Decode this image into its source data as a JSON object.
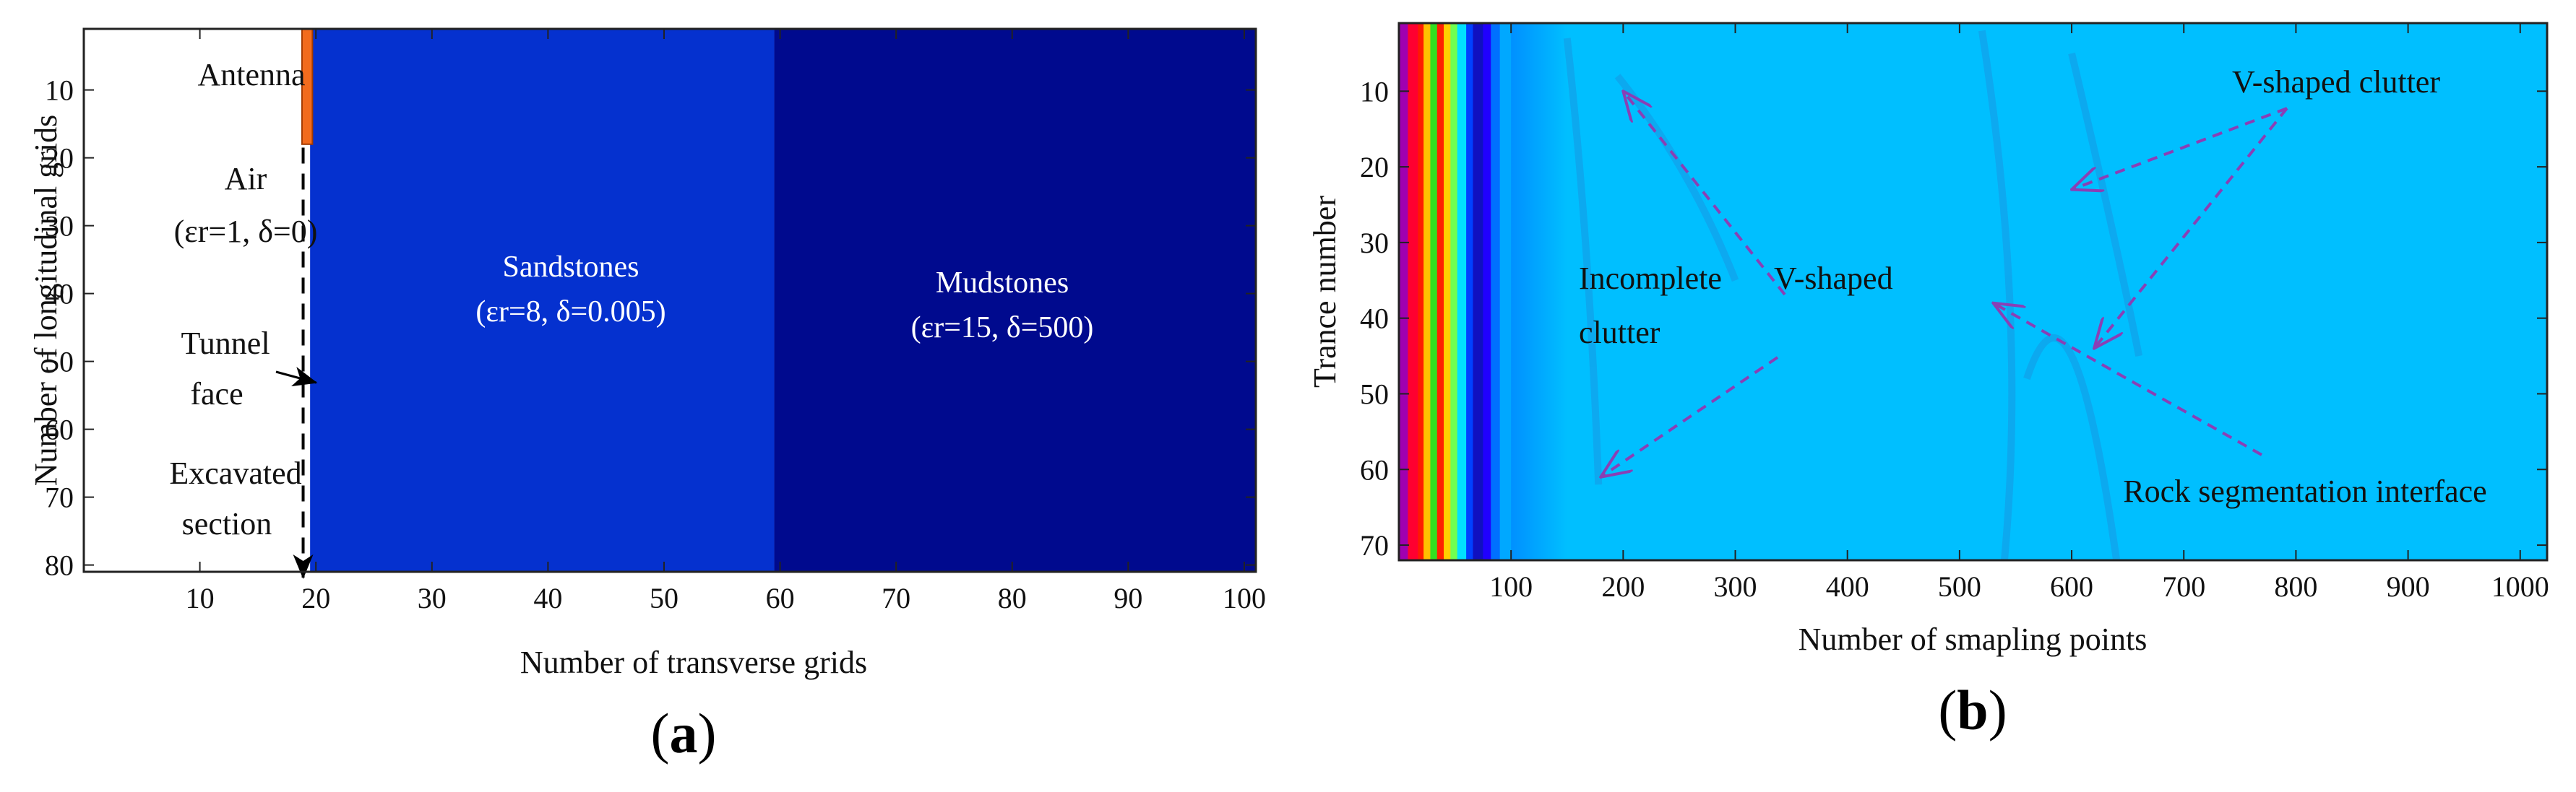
{
  "chart_data": [
    {
      "type": "heatmap",
      "panel_label": {
        "open": "(",
        "letter": "a",
        "close": ")"
      },
      "xlabel": "Number of transverse grids",
      "ylabel": "Number of longitudinal grids",
      "xlim": [
        0,
        101
      ],
      "ylim": [
        81,
        1
      ],
      "x_ticks": [
        "10",
        "20",
        "30",
        "40",
        "50",
        "60",
        "70",
        "80",
        "90",
        "100"
      ],
      "y_ticks": [
        "10",
        "20",
        "30",
        "40",
        "50",
        "60",
        "70",
        "80"
      ],
      "regions": [
        {
          "name": "Air",
          "x": [
            0,
            19.5
          ],
          "color": "#ffffff",
          "lines": [
            "Air",
            "(εr=1, δ=0)"
          ]
        },
        {
          "name": "Sandstones",
          "x": [
            19.5,
            59.5
          ],
          "color": "#0531cf",
          "lines": [
            "Sandstones",
            "(εr=8, δ=0.005)"
          ]
        },
        {
          "name": "Mudstones",
          "x": [
            59.5,
            101
          ],
          "color": "#000a8e",
          "lines": [
            "Mudstones",
            "(εr=15, δ=500)"
          ]
        }
      ],
      "antenna": {
        "label": "Antenna",
        "x": [
          18.8,
          19.7
        ],
        "y": [
          1,
          18
        ],
        "color": "#f26b1d"
      },
      "annotations": {
        "tunnel_face": [
          "Tunnel",
          "face"
        ],
        "excavated": [
          "Excavated",
          "section"
        ]
      }
    },
    {
      "type": "heatmap",
      "panel_label": {
        "open": "(",
        "letter": "b",
        "close": ")"
      },
      "xlabel": "Number of smapling points",
      "ylabel": "Trance number",
      "xlim": [
        0,
        1024
      ],
      "ylim": [
        72,
        1
      ],
      "x_ticks": [
        "100",
        "200",
        "300",
        "400",
        "500",
        "600",
        "700",
        "800",
        "900",
        "1000"
      ],
      "y_ticks": [
        "10",
        "20",
        "30",
        "40",
        "50",
        "60",
        "70"
      ],
      "background_color": "#00bfff",
      "direct_wave_bands": [
        {
          "x": [
            0,
            8
          ],
          "color": "#a000b0"
        },
        {
          "x": [
            8,
            17
          ],
          "color": "#ff0030"
        },
        {
          "x": [
            17,
            22
          ],
          "color": "#ff1a00"
        },
        {
          "x": [
            22,
            28
          ],
          "color": "#ffc000"
        },
        {
          "x": [
            28,
            34
          ],
          "color": "#30e020"
        },
        {
          "x": [
            34,
            40
          ],
          "color": "#ff2000"
        },
        {
          "x": [
            40,
            46
          ],
          "color": "#ffd000"
        },
        {
          "x": [
            46,
            52
          ],
          "color": "#70ff50"
        },
        {
          "x": [
            52,
            60
          ],
          "color": "#00e0ff"
        },
        {
          "x": [
            60,
            66
          ],
          "color": "#0040ff"
        },
        {
          "x": [
            66,
            75
          ],
          "color": "#1010c0"
        },
        {
          "x": [
            75,
            82
          ],
          "color": "#2000ff"
        },
        {
          "x": [
            82,
            90
          ],
          "color": "#0070ff"
        },
        {
          "x": [
            90,
            100
          ],
          "color": "#00a8ff"
        }
      ],
      "annotations": {
        "v_shaped": "V-shaped clutter",
        "incomplete": [
          "Incomplete",
          "V-shaped",
          "clutter"
        ],
        "rock": "Rock segmentation interface"
      },
      "arrow_color": "#8a3fb5"
    }
  ]
}
